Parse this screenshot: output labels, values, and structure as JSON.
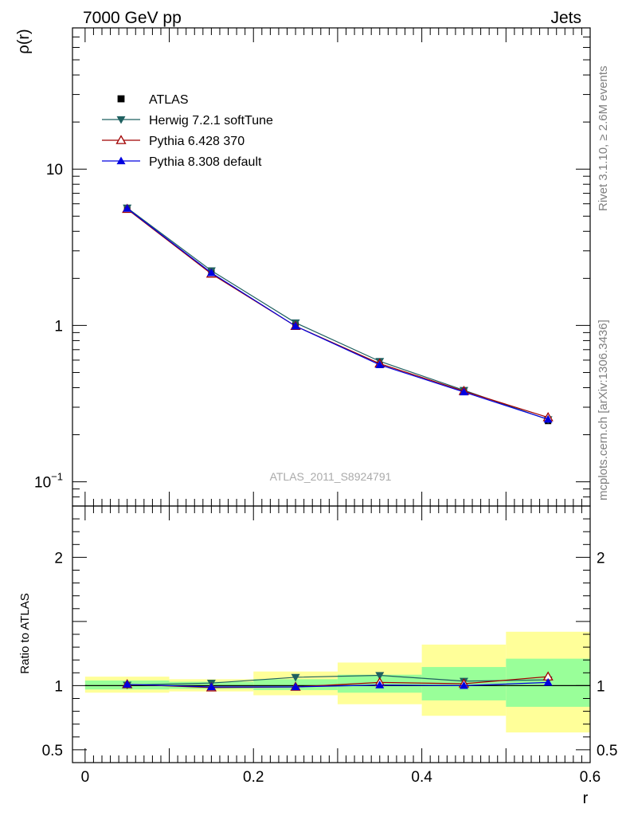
{
  "header": {
    "left": "7000 GeV pp",
    "right": "Jets"
  },
  "side_text": {
    "rivet": "Rivet 3.1.10, ≥ 2.6M events",
    "mcplots": "mcplots.cern.ch [arXiv:1306.3436]"
  },
  "watermark": "ATLAS_2011_S8924791",
  "colors": {
    "atlas": "#000000",
    "herwig": "#1f6060",
    "pythia6": "#a00000",
    "pythia8": "#0000e0",
    "band_inner": "#99ff99",
    "band_outer": "#ffff99"
  },
  "chart_data": [
    {
      "type": "line",
      "panel": "main",
      "ylabel": "ρ(r)",
      "yscale": "log",
      "ylim": [
        0.07,
        80
      ],
      "xlim": [
        -0.015,
        0.6
      ],
      "yticks": [
        {
          "value": 0.1,
          "base": "10",
          "exp": "−1"
        },
        {
          "value": 1,
          "label": "1"
        },
        {
          "value": 10,
          "label": "10"
        }
      ],
      "legend_placement": "top-left",
      "x": [
        0.05,
        0.15,
        0.25,
        0.35,
        0.45,
        0.55
      ],
      "data": {
        "name": "ATLAS",
        "values": [
          5.6,
          2.2,
          1.0,
          0.56,
          0.38,
          0.245
        ]
      },
      "series": [
        {
          "name": "Herwig 7.2.1 softTune",
          "marker": "triangle-down",
          "values": [
            5.65,
            2.24,
            1.04,
            0.59,
            0.385,
            0.25
          ]
        },
        {
          "name": "Pythia 6.428 370",
          "marker": "triangle-up-open",
          "values": [
            5.55,
            2.14,
            0.99,
            0.57,
            0.38,
            0.258
          ]
        },
        {
          "name": "Pythia 8.308 default",
          "marker": "triangle-up",
          "values": [
            5.6,
            2.17,
            0.99,
            0.56,
            0.375,
            0.251
          ]
        }
      ]
    },
    {
      "type": "line",
      "panel": "ratio",
      "ylabel": "Ratio to ATLAS",
      "xlabel": "r",
      "ylim": [
        0.4,
        2.4
      ],
      "xlim": [
        -0.015,
        0.6
      ],
      "yticks": [
        {
          "value": 0.5,
          "label": "0.5"
        },
        {
          "value": 1,
          "label": "1"
        },
        {
          "value": 2,
          "label": "2"
        }
      ],
      "xticks": [
        {
          "value": 0,
          "label": "0"
        },
        {
          "value": 0.2,
          "label": "0.2"
        },
        {
          "value": 0.4,
          "label": "0.4"
        },
        {
          "value": 0.6,
          "label": "0.6"
        }
      ],
      "x": [
        0.05,
        0.15,
        0.25,
        0.35,
        0.45,
        0.55
      ],
      "bins": [
        [
          0.0,
          0.1
        ],
        [
          0.1,
          0.2
        ],
        [
          0.2,
          0.3
        ],
        [
          0.3,
          0.4
        ],
        [
          0.4,
          0.5
        ],
        [
          0.5,
          0.6
        ]
      ],
      "band_inner": [
        [
          0.97,
          1.04
        ],
        [
          0.975,
          1.03
        ],
        [
          0.965,
          1.05
        ],
        [
          0.945,
          1.085
        ],
        [
          0.885,
          1.145
        ],
        [
          0.835,
          1.21
        ]
      ],
      "band_outer": [
        [
          0.945,
          1.07
        ],
        [
          0.955,
          1.05
        ],
        [
          0.925,
          1.11
        ],
        [
          0.855,
          1.18
        ],
        [
          0.765,
          1.32
        ],
        [
          0.635,
          1.42
        ]
      ],
      "series": [
        {
          "name": "Herwig 7.2.1 softTune",
          "marker": "triangle-down",
          "values": [
            1.005,
            1.02,
            1.065,
            1.08,
            1.035,
            1.045
          ]
        },
        {
          "name": "Pythia 6.428 370",
          "marker": "triangle-up-open",
          "values": [
            1.01,
            0.985,
            0.99,
            1.025,
            1.015,
            1.07
          ]
        },
        {
          "name": "Pythia 8.308 default",
          "marker": "triangle-up",
          "values": [
            1.01,
            0.99,
            0.99,
            1.005,
            1.0,
            1.025
          ]
        }
      ]
    }
  ]
}
